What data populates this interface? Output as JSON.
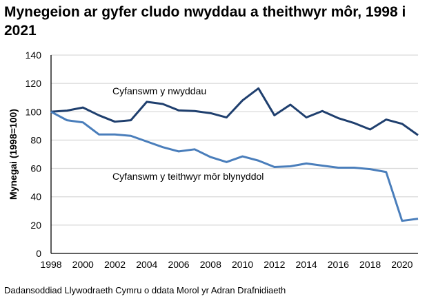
{
  "chart_data": {
    "type": "line",
    "title": "Mynegeion ar gyfer cludo nwyddau a theithwyr môr, 1998 i 2021",
    "xlabel": "",
    "ylabel": "Mynegai (1998=100)",
    "ylim": [
      0,
      140
    ],
    "yticks": [
      0,
      20,
      40,
      60,
      80,
      100,
      120,
      140
    ],
    "xlim": [
      1998,
      2021
    ],
    "xticks": [
      1998,
      2000,
      2002,
      2004,
      2006,
      2008,
      2010,
      2012,
      2014,
      2016,
      2018,
      2020
    ],
    "grid": true,
    "x": [
      1998,
      1999,
      2000,
      2001,
      2002,
      2003,
      2004,
      2005,
      2006,
      2007,
      2008,
      2009,
      2010,
      2011,
      2012,
      2013,
      2014,
      2015,
      2016,
      2017,
      2018,
      2019,
      2020,
      2021
    ],
    "series": [
      {
        "name": "Cyfanswm y nwyddau",
        "color": "#1f3f6e",
        "values": [
          100,
          100.8,
          103,
          97.5,
          93,
          94,
          107,
          105.5,
          101,
          100.5,
          99,
          96,
          108,
          116.5,
          97.5,
          105,
          96,
          100.5,
          95.5,
          92,
          87.5,
          94.5,
          91.5,
          83.5
        ]
      },
      {
        "name": "Cyfanswm y teithwyr môr blynyddol",
        "color": "#4a7ebb",
        "values": [
          100,
          94,
          92.5,
          84,
          84,
          83,
          79,
          75,
          72,
          73.5,
          68,
          64.5,
          68.5,
          65.5,
          61,
          61.5,
          63.5,
          62,
          60.5,
          60.5,
          59.5,
          57.5,
          23,
          24.5
        ]
      }
    ]
  },
  "source": "Dadansoddiad Llywodraeth Cymru o ddata Morol yr Adran Drafnidiaeth"
}
